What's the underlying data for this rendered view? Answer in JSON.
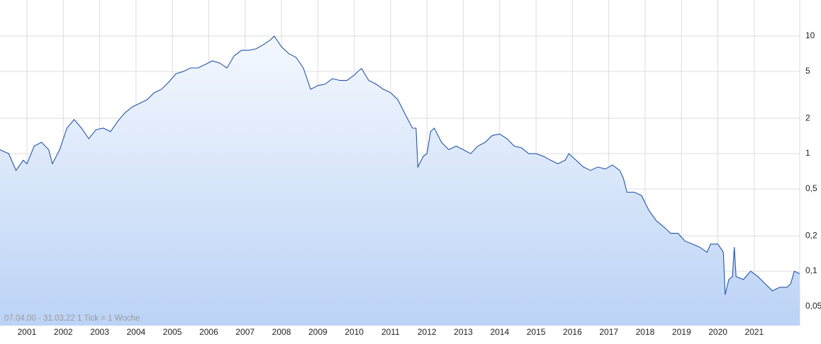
{
  "chart_data": {
    "type": "area",
    "note": "07.04.00 - 31.03.22   1 Tick = 1 Woche",
    "log_scale": true,
    "grid": true,
    "color": "#2255aa",
    "x": [
      2000.26,
      2000.5,
      2000.7,
      2000.9,
      2001.0,
      2001.2,
      2001.4,
      2001.6,
      2001.7,
      2001.9,
      2002.1,
      2002.3,
      2002.5,
      2002.7,
      2002.9,
      2003.1,
      2003.3,
      2003.5,
      2003.7,
      2003.9,
      2004.1,
      2004.3,
      2004.5,
      2004.7,
      2004.9,
      2005.1,
      2005.3,
      2005.5,
      2005.7,
      2005.9,
      2006.1,
      2006.3,
      2006.5,
      2006.7,
      2006.9,
      2007.1,
      2007.3,
      2007.5,
      2007.7,
      2007.8,
      2008.0,
      2008.2,
      2008.4,
      2008.6,
      2008.8,
      2009.0,
      2009.2,
      2009.4,
      2009.6,
      2009.8,
      2010.0,
      2010.1,
      2010.2,
      2010.4,
      2010.6,
      2010.8,
      2011.0,
      2011.2,
      2011.4,
      2011.6,
      2011.7,
      2011.75,
      2011.9,
      2012.0,
      2012.1,
      2012.2,
      2012.4,
      2012.6,
      2012.8,
      2013.0,
      2013.2,
      2013.4,
      2013.6,
      2013.8,
      2014.0,
      2014.2,
      2014.4,
      2014.6,
      2014.8,
      2015.0,
      2015.2,
      2015.4,
      2015.6,
      2015.8,
      2015.9,
      2016.1,
      2016.3,
      2016.5,
      2016.7,
      2016.9,
      2017.1,
      2017.3,
      2017.4,
      2017.5,
      2017.7,
      2017.9,
      2018.1,
      2018.3,
      2018.5,
      2018.7,
      2018.9,
      2019.1,
      2019.3,
      2019.5,
      2019.7,
      2019.8,
      2020.0,
      2020.15,
      2020.2,
      2020.3,
      2020.4,
      2020.45,
      2020.5,
      2020.7,
      2020.9,
      2021.1,
      2021.3,
      2021.5,
      2021.7,
      2021.9,
      2022.0,
      2022.1,
      2022.25
    ],
    "values": [
      1.08,
      1.0,
      0.72,
      0.88,
      0.82,
      1.16,
      1.25,
      1.08,
      0.82,
      1.08,
      1.65,
      1.95,
      1.65,
      1.34,
      1.6,
      1.65,
      1.54,
      1.89,
      2.23,
      2.5,
      2.68,
      2.87,
      3.3,
      3.53,
      4.06,
      4.79,
      5.0,
      5.36,
      5.36,
      5.74,
      6.16,
      5.9,
      5.36,
      6.8,
      7.57,
      7.57,
      7.8,
      8.45,
      9.3,
      10.0,
      8.1,
      7.1,
      6.6,
      5.36,
      3.53,
      3.8,
      3.9,
      4.35,
      4.2,
      4.2,
      4.66,
      5.0,
      5.3,
      4.2,
      3.9,
      3.53,
      3.3,
      2.87,
      2.17,
      1.65,
      1.65,
      0.77,
      0.95,
      1.0,
      1.54,
      1.65,
      1.25,
      1.08,
      1.16,
      1.08,
      1.0,
      1.16,
      1.25,
      1.43,
      1.47,
      1.34,
      1.16,
      1.12,
      1.0,
      1.0,
      0.95,
      0.88,
      0.82,
      0.88,
      1.0,
      0.88,
      0.77,
      0.72,
      0.77,
      0.74,
      0.8,
      0.72,
      0.62,
      0.47,
      0.47,
      0.44,
      0.33,
      0.27,
      0.24,
      0.21,
      0.21,
      0.18,
      0.17,
      0.16,
      0.145,
      0.17,
      0.17,
      0.145,
      0.063,
      0.085,
      0.09,
      0.16,
      0.09,
      0.085,
      0.1,
      0.09,
      0.078,
      0.068,
      0.073,
      0.073,
      0.078,
      0.1,
      0.095
    ],
    "xlim": [
      2000.26,
      2022.25
    ],
    "xticks": [
      2001,
      2002,
      2003,
      2004,
      2005,
      2006,
      2007,
      2008,
      2009,
      2010,
      2011,
      2012,
      2013,
      2014,
      2015,
      2016,
      2017,
      2018,
      2019,
      2020,
      2021
    ],
    "ylim": [
      0.0344,
      20.3
    ],
    "yticks": [
      {
        "value": 0.05,
        "label": "0,05"
      },
      {
        "value": 0.1,
        "label": "0,1"
      },
      {
        "value": 0.2,
        "label": "0,2"
      },
      {
        "value": 0.5,
        "label": "0,5"
      },
      1,
      2,
      5,
      10
    ]
  }
}
